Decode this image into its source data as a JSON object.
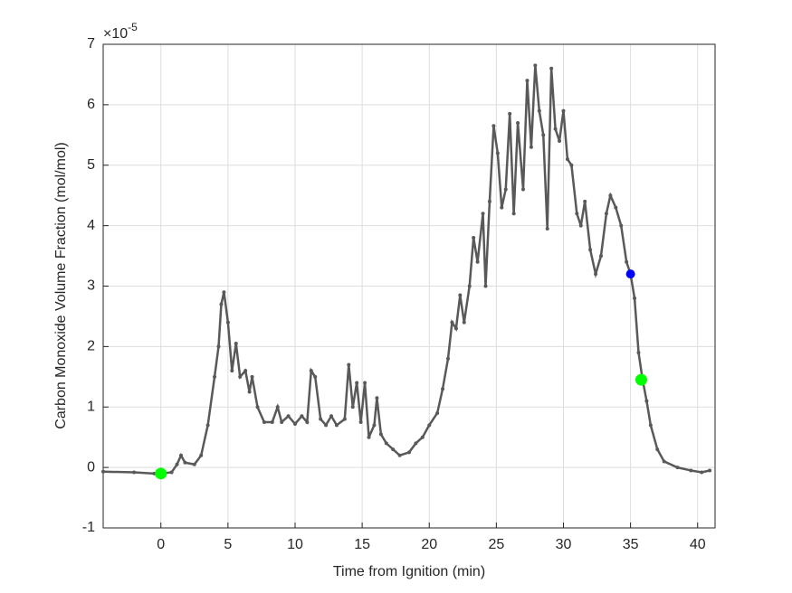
{
  "chart_data": {
    "type": "line",
    "xlabel": "Time from Ignition (min)",
    "ylabel": "Carbon Monoxide Volume Fraction (mol/mol)",
    "y_multiplier": {
      "base": "×10",
      "exponent": "-5"
    },
    "xlim": [
      -4.3,
      41.3
    ],
    "ylim": [
      -1,
      7
    ],
    "xticks": [
      0,
      5,
      10,
      15,
      20,
      25,
      30,
      35,
      40
    ],
    "yticks": [
      -1,
      0,
      1,
      2,
      3,
      4,
      5,
      6,
      7
    ],
    "grid": true,
    "series": [
      {
        "color": "#595959",
        "x": [
          -4.3,
          -2,
          -0.5,
          0,
          0.8,
          1.2,
          1.5,
          1.8,
          2.5,
          3.0,
          3.5,
          4.0,
          4.3,
          4.5,
          4.7,
          5.0,
          5.3,
          5.6,
          5.9,
          6.3,
          6.6,
          6.8,
          7.2,
          7.7,
          8.3,
          8.7,
          9.0,
          9.5,
          10,
          10.5,
          10.9,
          11.2,
          11.5,
          11.9,
          12.3,
          12.7,
          13.1,
          13.7,
          14.0,
          14.3,
          14.6,
          14.9,
          15.2,
          15.5,
          15.9,
          16.1,
          16.4,
          16.8,
          17.3,
          17.8,
          18.5,
          19.0,
          19.5,
          20.0,
          20.6,
          21.0,
          21.4,
          21.7,
          22.0,
          22.3,
          22.6,
          23.0,
          23.3,
          23.6,
          24.0,
          24.2,
          24.5,
          24.8,
          25.1,
          25.4,
          25.7,
          26.0,
          26.3,
          26.6,
          27.0,
          27.3,
          27.6,
          27.9,
          28.2,
          28.5,
          28.8,
          29.1,
          29.4,
          29.7,
          30.0,
          30.3,
          30.6,
          31.0,
          31.3,
          31.6,
          32.0,
          32.4,
          32.8,
          33.2,
          33.5,
          33.9,
          34.3,
          34.7,
          35.0,
          35.3,
          35.6,
          35.9,
          36.2,
          36.5,
          37.0,
          37.5,
          38.5,
          39.5,
          40.3,
          40.9
        ],
        "values": [
          -0.07,
          -0.08,
          -0.1,
          -0.1,
          -0.08,
          0.05,
          0.2,
          0.08,
          0.05,
          0.2,
          0.7,
          1.5,
          2.0,
          2.7,
          2.9,
          2.4,
          1.6,
          2.05,
          1.5,
          1.6,
          1.25,
          1.5,
          1.0,
          0.75,
          0.75,
          1.0,
          0.75,
          0.85,
          0.72,
          0.85,
          0.75,
          1.6,
          1.5,
          0.8,
          0.7,
          0.85,
          0.7,
          0.8,
          1.7,
          1.0,
          1.4,
          0.75,
          1.4,
          0.5,
          0.7,
          1.15,
          0.55,
          0.4,
          0.3,
          0.2,
          0.25,
          0.4,
          0.5,
          0.7,
          0.9,
          1.3,
          1.8,
          2.4,
          2.3,
          2.85,
          2.4,
          3.0,
          3.8,
          3.4,
          4.2,
          3.0,
          4.4,
          5.65,
          5.2,
          4.3,
          4.6,
          5.85,
          4.2,
          5.7,
          4.6,
          6.4,
          5.3,
          6.65,
          5.9,
          5.5,
          3.95,
          6.6,
          5.6,
          5.4,
          5.9,
          5.1,
          5.0,
          4.2,
          4.0,
          4.4,
          3.6,
          3.2,
          3.5,
          4.2,
          4.5,
          4.3,
          4.0,
          3.4,
          3.2,
          2.8,
          1.9,
          1.45,
          1.1,
          0.7,
          0.3,
          0.1,
          0.0,
          -0.05,
          -0.08,
          -0.05
        ]
      }
    ],
    "highlights": [
      {
        "x": 0,
        "y": -0.1,
        "color": "#00ff00"
      },
      {
        "x": 35.8,
        "y": 1.45,
        "color": "#00ff00"
      },
      {
        "x": 35.0,
        "y": 3.2,
        "color": "#0000ff"
      }
    ]
  }
}
